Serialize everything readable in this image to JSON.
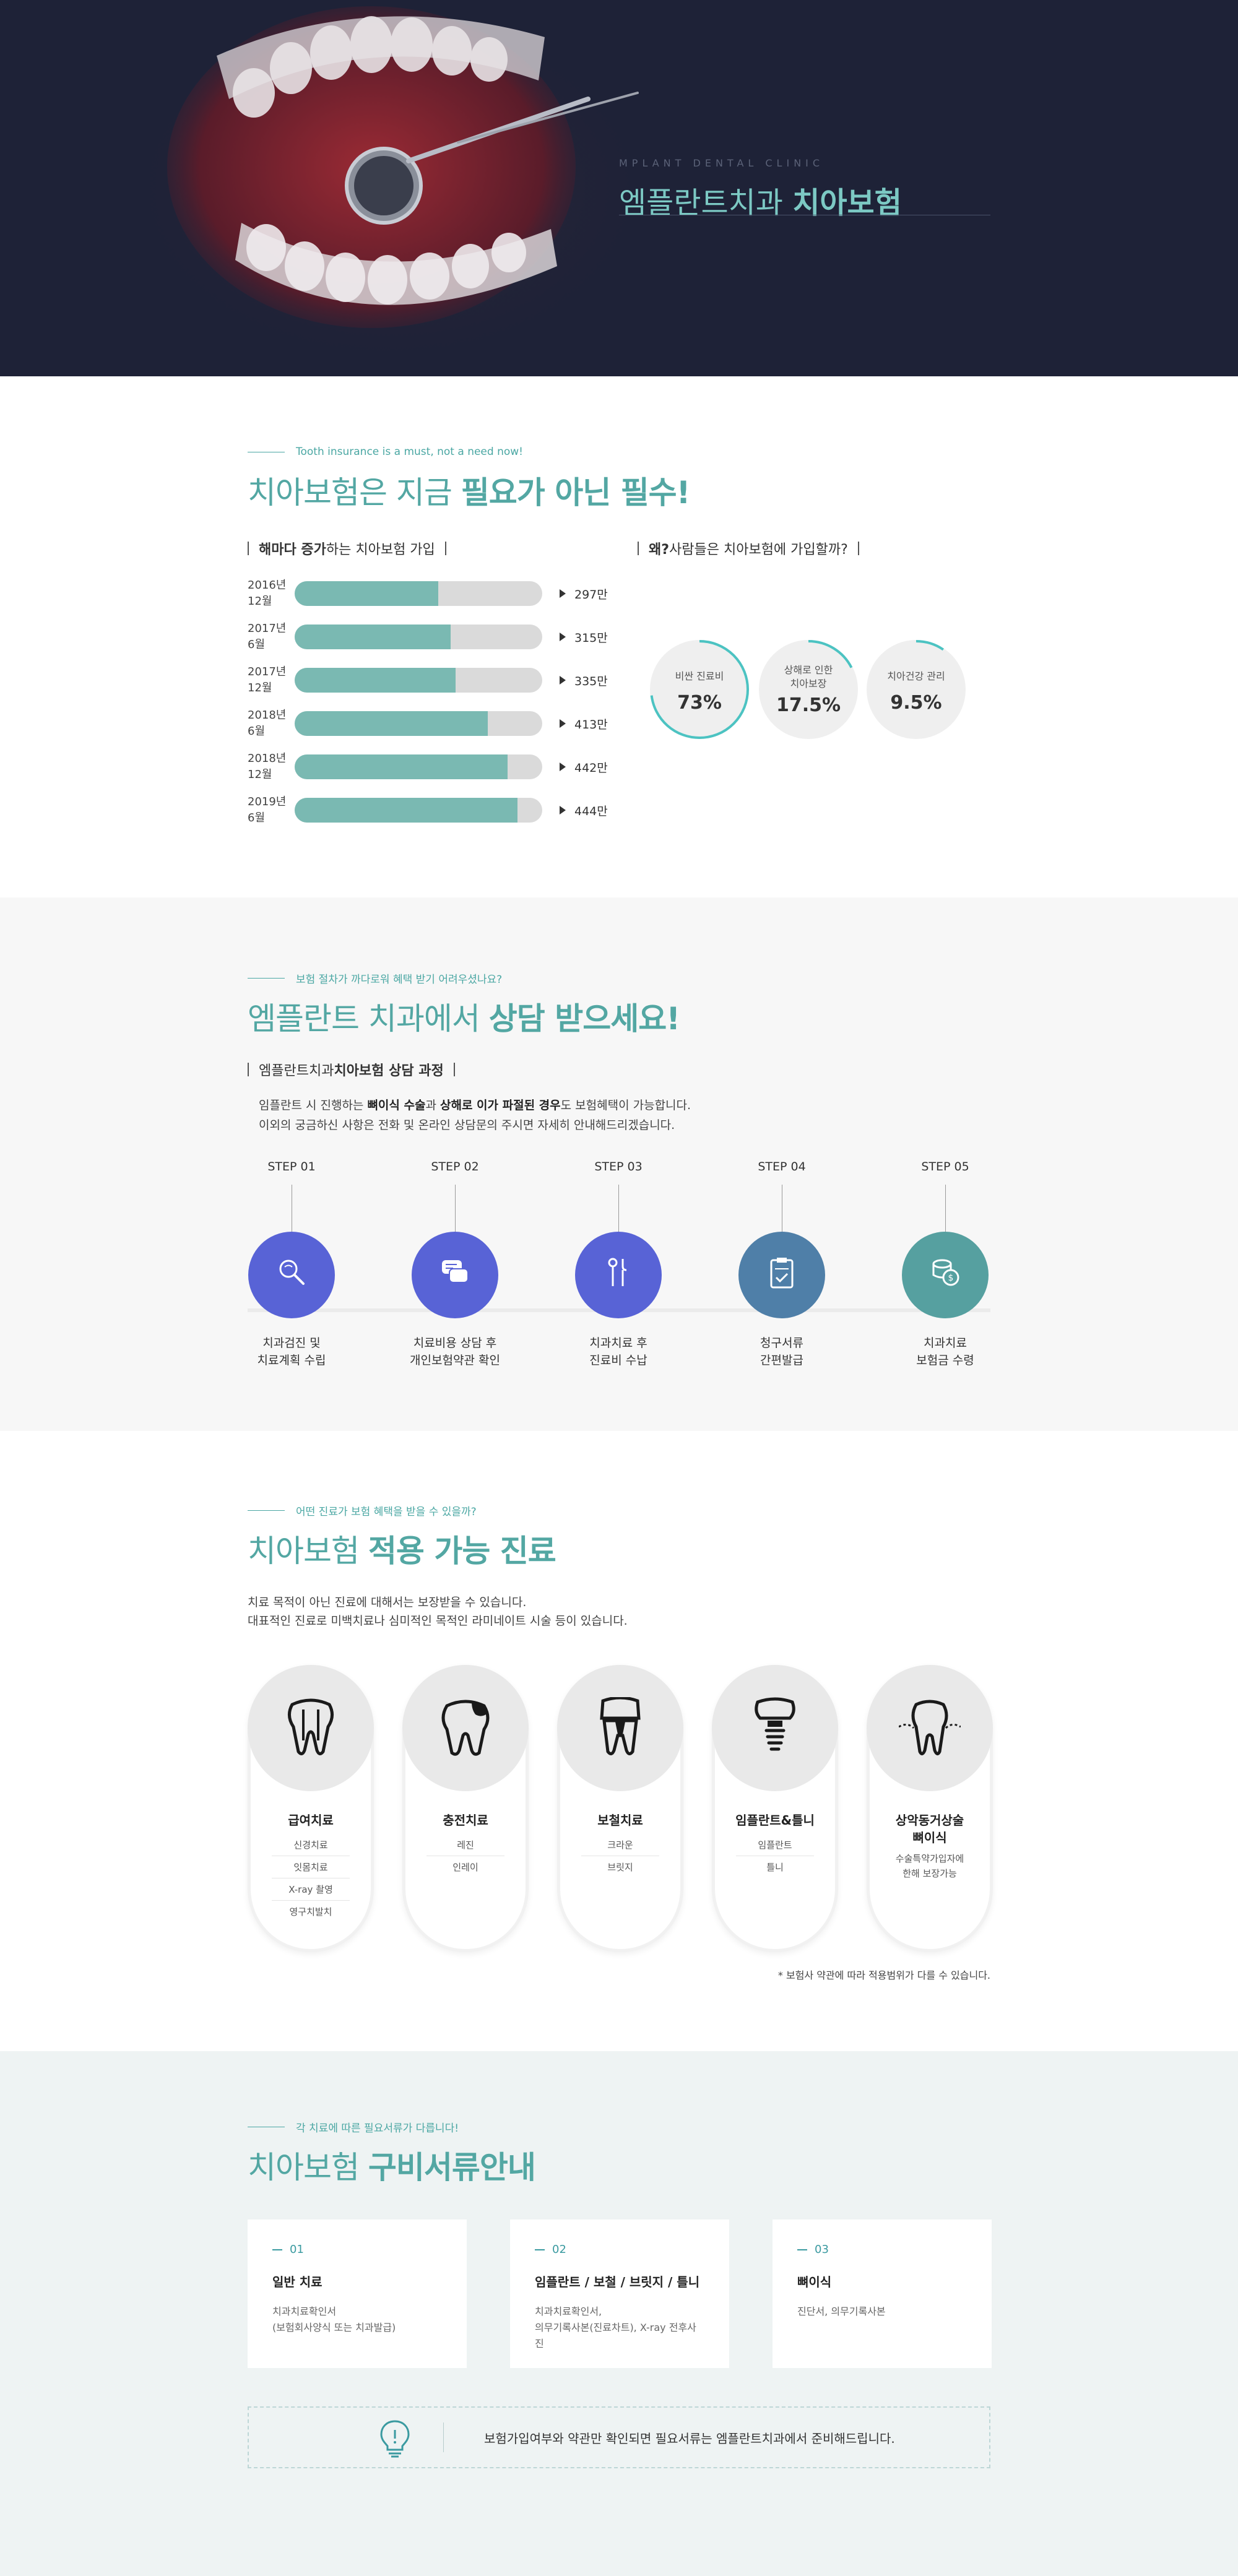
{
  "hero": {
    "subtitle": "MPLANT DENTAL CLINIC",
    "title_light": "엠플란트치과 ",
    "title_bold": "치아보험"
  },
  "colors": {
    "hero_bg": "#1e2237",
    "accent": "#53a7a3",
    "bar_fill": "#7ab9b2",
    "step_blue": "#5863d6",
    "step_slate": "#4f7fa8",
    "step_teal": "#56a0a0"
  },
  "s1": {
    "kicker": "Tooth insurance is a must, not a need now!",
    "title_light": "치아보험은 지금 ",
    "title_bold": "필요가 아닌 필수!",
    "left_title_bold": "해마다 증가",
    "left_title_rest": "하는 치아보험 가입",
    "right_title_bold": "왜?",
    "right_title_rest": " 사람들은 치아보험에 가입할까?"
  },
  "chart_data": [
    {
      "type": "bar",
      "title": "해마다 증가하는 치아보험 가입",
      "categories": [
        "2016년 12월",
        "2017년 6월",
        "2017년 12월",
        "2018년 6월",
        "2018년 12월",
        "2019년 6월"
      ],
      "values": [
        297,
        315,
        335,
        413,
        442,
        444
      ],
      "value_labels": [
        "297만",
        "315만",
        "335만",
        "413만",
        "442만",
        "444만"
      ],
      "label_lines": [
        [
          "2016년",
          "12월"
        ],
        [
          "2017년",
          "6월"
        ],
        [
          "2017년",
          "12월"
        ],
        [
          "2018년",
          "6월"
        ],
        [
          "2018년",
          "12월"
        ],
        [
          "2019년",
          "6월"
        ]
      ],
      "fill_fractions": [
        0.58,
        0.63,
        0.65,
        0.78,
        0.86,
        0.9
      ]
    },
    {
      "type": "pie",
      "title": "왜? 사람들은 치아보험에 가입할까?",
      "categories": [
        "비싼 진료비",
        "상해로 인한 치아보장",
        "치아건강 관리"
      ],
      "label_lines": [
        [
          "비싼 진료비"
        ],
        [
          "상해로 인한",
          "치아보장"
        ],
        [
          "치아건강 관리"
        ]
      ],
      "values": [
        73,
        17.5,
        9.5
      ],
      "value_labels": [
        "73%",
        "17.5%",
        "9.5%"
      ]
    }
  ],
  "s2": {
    "kicker": "보험 절차가 까다로워 혜택 받기 어려우셨나요?",
    "title_light": "엠플란트 치과에서 ",
    "title_bold": "상담 받으세요!",
    "sub_rest": "엠플란트치과 ",
    "sub_bold": "치아보험 상담 과정",
    "desc1_a": "임플란트 시 진행하는 ",
    "desc1_b": "뼈이식 수술",
    "desc1_c": "과 ",
    "desc1_d": "상해로 이가 파절된 경우",
    "desc1_e": "도 보험혜택이 가능합니다.",
    "desc2": "이외의 궁금하신 사항은 전화 및 온라인 상담문의 주시면 자세히 안내해드리겠습니다.",
    "steps": [
      {
        "label": "STEP 01",
        "line1": "치과검진 및",
        "line2": "치료계획 수립",
        "icon": "magnifier-tooth-icon",
        "color": "#5863d6"
      },
      {
        "label": "STEP 02",
        "line1": "치료비용 상담 후",
        "line2": "개인보험약관 확인",
        "icon": "chat-bubbles-icon",
        "color": "#5863d6"
      },
      {
        "label": "STEP 03",
        "line1": "치과치료 후",
        "line2": "진료비 수납",
        "icon": "dental-tools-icon",
        "color": "#5863d6"
      },
      {
        "label": "STEP 04",
        "line1": "청구서류",
        "line2": "간편발급",
        "icon": "clipboard-check-icon",
        "color": "#4f7fa8"
      },
      {
        "label": "STEP 05",
        "line1": "치과치료",
        "line2": "보험금 수령",
        "icon": "coins-icon",
        "color": "#56a0a0"
      }
    ]
  },
  "s3": {
    "kicker": "어떤 진료가 보험 혜택을 받을 수 있을까?",
    "title_light": "치아보험 ",
    "title_bold": "적용 가능 진료",
    "desc1": "치료 목적이 아닌 진료에 대해서는 보장받을 수 있습니다.",
    "desc2": "대표적인 진료로 미백치료나 심미적인 목적인 라미네이트 시술 등이 있습니다.",
    "cards": [
      {
        "title": "급여치료",
        "items": [
          "신경치료",
          "잇몸치료",
          "X-ray 촬영",
          "영구치발치"
        ],
        "icon": "tooth-roots-icon"
      },
      {
        "title": "충전치료",
        "items": [
          "레진",
          "인레이"
        ],
        "icon": "tooth-cavity-icon"
      },
      {
        "title": "보철치료",
        "items": [
          "크라운",
          "브릿지"
        ],
        "icon": "tooth-crown-icon"
      },
      {
        "title": "임플란트&틀니",
        "items": [
          "임플란트",
          "틀니"
        ],
        "icon": "implant-icon"
      },
      {
        "title_line1": "상악동거상술",
        "title_line2": "뼈이식",
        "note1": "수술특약가입자에",
        "note2": "한해 보장가능",
        "icon": "gum-tooth-icon"
      }
    ],
    "footnote": "* 보험사 약관에 따라 적용범위가 다를 수 있습니다."
  },
  "s4": {
    "kicker": "각 치료에 따른 필요서류가 다릅니다!",
    "title_light": "치아보험 ",
    "title_bold": "구비서류안내",
    "docs": [
      {
        "num": "01",
        "title": "일반 치료",
        "line1": "치과치료확인서",
        "line2": "(보험회사양식 또는 치과발급)"
      },
      {
        "num": "02",
        "title": "임플란트 / 보철 / 브릿지 / 틀니",
        "line1": "치과치료확인서,",
        "line2": "의무기록사본(진료차트), X-ray 전후사진"
      },
      {
        "num": "03",
        "title": "뼈이식",
        "line1": "진단서, 의무기록사본",
        "line2": ""
      }
    ],
    "notice": "보험가입여부와 약관만 확인되면 필요서류는 엠플란트치과에서 준비해드립니다.",
    "notice_icon": "lightbulb-icon"
  }
}
